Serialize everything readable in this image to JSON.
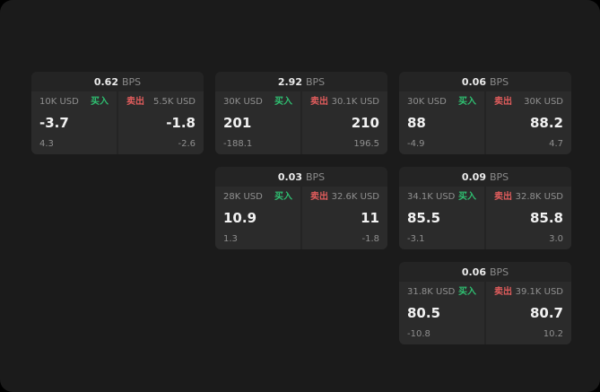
{
  "labels": {
    "buy": "买入",
    "sell": "卖出",
    "bps_suffix": "BPS"
  },
  "colors": {
    "page_bg": "#1b1b1b",
    "card_bg": "#242424",
    "panel_bg": "#2b2b2b",
    "buy_green": "#2fbf71",
    "sell_red": "#e05c5c",
    "primary_text": "#f2f2f2",
    "secondary_text": "#8f8f8f"
  },
  "cards": [
    {
      "spread": "0.62",
      "buy": {
        "amount": "10K USD",
        "price": "-3.7",
        "delta": "4.3"
      },
      "sell": {
        "amount": "5.5K USD",
        "price": "-1.8",
        "delta": "-2.6"
      }
    },
    {
      "spread": "2.92",
      "buy": {
        "amount": "30K USD",
        "price": "201",
        "delta": "-188.1"
      },
      "sell": {
        "amount": "30.1K USD",
        "price": "210",
        "delta": "196.5"
      }
    },
    {
      "spread": "0.06",
      "buy": {
        "amount": "30K USD",
        "price": "88",
        "delta": "-4.9"
      },
      "sell": {
        "amount": "30K USD",
        "price": "88.2",
        "delta": "4.7"
      }
    },
    {
      "spread": "0.03",
      "buy": {
        "amount": "28K USD",
        "price": "10.9",
        "delta": "1.3"
      },
      "sell": {
        "amount": "32.6K USD",
        "price": "11",
        "delta": "-1.8"
      }
    },
    {
      "spread": "0.09",
      "buy": {
        "amount": "34.1K USD",
        "price": "85.5",
        "delta": "-3.1"
      },
      "sell": {
        "amount": "32.8K USD",
        "price": "85.8",
        "delta": "3.0"
      }
    },
    {
      "spread": "0.06",
      "buy": {
        "amount": "31.8K USD",
        "price": "80.5",
        "delta": "-10.8"
      },
      "sell": {
        "amount": "39.1K USD",
        "price": "80.7",
        "delta": "10.2"
      }
    }
  ]
}
